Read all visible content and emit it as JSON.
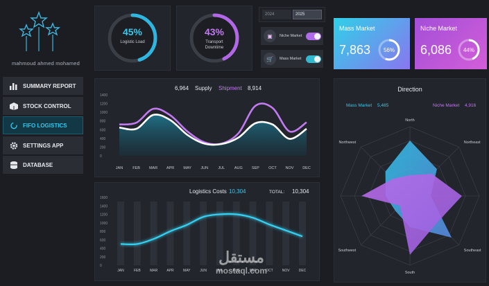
{
  "brand": {
    "name": "mahmoud ahmed mohamed"
  },
  "menu": [
    {
      "label": "SUMMARY REPORT",
      "icon": "bar-chart-icon"
    },
    {
      "label": "STOCK CONTROL",
      "icon": "box-icon"
    },
    {
      "label": "FIFO LOGISTICS",
      "icon": "refresh-icon",
      "active": true
    },
    {
      "label": "SETTINGS APP",
      "icon": "gear-icon"
    },
    {
      "label": "DATABASE",
      "icon": "database-icon"
    }
  ],
  "gauges": [
    {
      "pct": "45%",
      "value": 0.45,
      "label": "Logistic Load",
      "color": "#2fb6e0"
    },
    {
      "pct": "43%",
      "value": 0.43,
      "label_line1": "Transport",
      "label_line2": "Downtime",
      "color": "#b268e6"
    }
  ],
  "years": {
    "y1": "2024",
    "y2": "2025",
    "selected": "2025"
  },
  "toggles": [
    {
      "label": "Niche Market",
      "icon": "store-icon",
      "color": "#b06be8"
    },
    {
      "label": "Mass Market",
      "icon": "cart-icon",
      "color": "#32b9cf"
    }
  ],
  "markets": [
    {
      "title": "Mass Market",
      "value": "7,863",
      "pct": "56%",
      "fraction": 0.56,
      "gradient": [
        "#2fd0e8",
        "#8a76ef"
      ]
    },
    {
      "title": "Niche Market",
      "value": "6,086",
      "pct": "44%",
      "fraction": 0.44,
      "gradient": [
        "#a34fd8",
        "#d35ed8"
      ]
    }
  ],
  "supply": {
    "supply_value": "6,964",
    "supply_label": "Supply",
    "shipment_label": "Shipment",
    "shipment_value": "8,914",
    "yticks": [
      "1400",
      "1200",
      "1000",
      "800",
      "600",
      "400",
      "200",
      "0"
    ],
    "months": [
      "JAN",
      "FEB",
      "MAR",
      "APR",
      "MAY",
      "JUN",
      "JUL",
      "AUG",
      "SEP",
      "OCT",
      "NOV",
      "DEC"
    ]
  },
  "costs": {
    "title": "Logistics Costs",
    "value": "10,304",
    "total_label": "TOTAL:",
    "total_value": "10,304",
    "yticks": [
      "1600",
      "1400",
      "1200",
      "1000",
      "800",
      "600",
      "400",
      "200",
      "0"
    ],
    "months": [
      "JAN",
      "FEB",
      "MAR",
      "APR",
      "MAY",
      "JUN",
      "JUL",
      "AUG",
      "SEP",
      "OCT",
      "NOV",
      "DEC"
    ]
  },
  "direction": {
    "title": "Direction",
    "mass_label": "Mass Market",
    "mass_value": "5,485",
    "niche_label": "Niche Market",
    "niche_value": "4,916",
    "axes": [
      "North",
      "Northeast",
      "East",
      "Southeast",
      "South",
      "Southwest",
      "West",
      "Northwest"
    ]
  },
  "chart_data": [
    {
      "type": "line",
      "x": [
        "JAN",
        "FEB",
        "MAR",
        "APR",
        "MAY",
        "JUN",
        "JUL",
        "AUG",
        "SEP",
        "OCT",
        "NOV",
        "DEC"
      ],
      "ylim": [
        0,
        1400
      ],
      "series": [
        {
          "name": "Supply",
          "values": [
            650,
            620,
            940,
            820,
            480,
            280,
            270,
            420,
            750,
            720,
            390,
            620
          ]
        },
        {
          "name": "Shipment",
          "values": [
            720,
            760,
            1080,
            930,
            560,
            310,
            280,
            520,
            1150,
            1100,
            560,
            770
          ]
        }
      ]
    },
    {
      "type": "line",
      "title": "Logistics Costs",
      "x": [
        "JAN",
        "FEB",
        "MAR",
        "APR",
        "MAY",
        "JUN",
        "JUL",
        "AUG",
        "SEP",
        "OCT",
        "NOV",
        "DEC"
      ],
      "ylim": [
        0,
        1600
      ],
      "values": [
        500,
        500,
        620,
        800,
        950,
        1140,
        1200,
        1200,
        1120,
        960,
        820,
        680
      ]
    },
    {
      "type": "radar",
      "title": "Direction",
      "categories": [
        "North",
        "Northeast",
        "East",
        "Southeast",
        "South",
        "Southwest",
        "West",
        "Northwest"
      ],
      "series": [
        {
          "name": "Mass Market",
          "values": [
            0.8,
            0.55,
            0.3,
            0.85,
            0.45,
            0.3,
            0.35,
            0.5
          ]
        },
        {
          "name": "Niche Market",
          "values": [
            0.3,
            0.45,
            0.75,
            0.55,
            0.85,
            0.2,
            0.7,
            0.35
          ]
        }
      ]
    }
  ],
  "watermark": {
    "arabic": "مستقل",
    "latin": "mostaql.com"
  }
}
